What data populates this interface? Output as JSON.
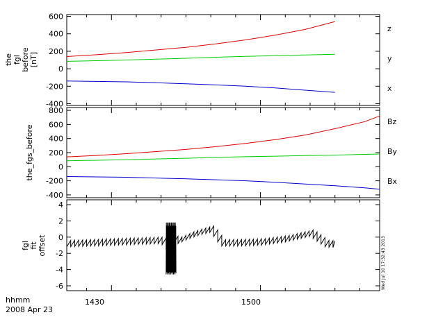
{
  "footer": {
    "xlabel_line1": "hhmm",
    "xlabel_line2": "2008 Apr 23",
    "x_ticks": [
      "1430",
      "1500"
    ],
    "stamp": "Wed Jul 10 17:32:43 2013"
  },
  "colors": {
    "red": "#e00000",
    "green": "#00cc00",
    "blue": "#0000cc",
    "black": "#000000"
  },
  "chart_data": [
    {
      "type": "line",
      "title": "",
      "ylabel": [
        "the",
        "fgl",
        "before",
        "[nT]"
      ],
      "x": {
        "unit": "hhmm",
        "range": [
          "14:21",
          "15:24"
        ],
        "ticks": [
          "14:30",
          "15:00"
        ]
      },
      "ylim": [
        -420,
        620
      ],
      "yticks": [
        600,
        400,
        200,
        0,
        -200,
        -400
      ],
      "grid": false,
      "legend_placement": "right",
      "series": [
        {
          "name": "z",
          "color": "#e00000",
          "x": [
            "14:21",
            "14:27",
            "14:33",
            "14:39",
            "14:45",
            "14:51",
            "14:57",
            "15:03",
            "15:09",
            "15:15"
          ],
          "y": [
            140,
            160,
            185,
            215,
            245,
            285,
            330,
            385,
            450,
            540
          ]
        },
        {
          "name": "y",
          "color": "#00cc00",
          "x": [
            "14:21",
            "14:27",
            "14:33",
            "14:39",
            "14:45",
            "14:51",
            "14:57",
            "15:03",
            "15:09",
            "15:15"
          ],
          "y": [
            85,
            92,
            100,
            110,
            120,
            132,
            142,
            150,
            158,
            165
          ]
        },
        {
          "name": "x",
          "color": "#0000cc",
          "x": [
            "14:21",
            "14:27",
            "14:33",
            "14:39",
            "14:45",
            "14:51",
            "14:57",
            "15:03",
            "15:09",
            "15:15"
          ],
          "y": [
            -140,
            -145,
            -150,
            -160,
            -172,
            -185,
            -200,
            -220,
            -245,
            -270
          ]
        }
      ]
    },
    {
      "type": "line",
      "title": "",
      "ylabel": [
        "the_fgs_before"
      ],
      "x": {
        "unit": "hhmm",
        "range": [
          "14:21",
          "15:24"
        ],
        "ticks": [
          "14:30",
          "15:00"
        ]
      },
      "ylim": [
        -440,
        840
      ],
      "yticks": [
        800,
        600,
        400,
        200,
        0,
        -200,
        -400
      ],
      "grid": false,
      "legend_placement": "right",
      "series": [
        {
          "name": "Bz",
          "color": "#e00000",
          "x": [
            "14:21",
            "14:27",
            "14:33",
            "14:39",
            "14:45",
            "14:51",
            "14:57",
            "15:03",
            "15:09",
            "15:15",
            "15:21",
            "15:24"
          ],
          "y": [
            140,
            160,
            185,
            215,
            245,
            285,
            330,
            385,
            450,
            540,
            640,
            720
          ]
        },
        {
          "name": "By",
          "color": "#00cc00",
          "x": [
            "14:21",
            "14:27",
            "14:33",
            "14:39",
            "14:45",
            "14:51",
            "14:57",
            "15:03",
            "15:09",
            "15:15",
            "15:21",
            "15:24"
          ],
          "y": [
            85,
            92,
            100,
            110,
            120,
            132,
            142,
            150,
            158,
            165,
            175,
            180
          ]
        },
        {
          "name": "Bx",
          "color": "#0000cc",
          "x": [
            "14:21",
            "14:27",
            "14:33",
            "14:39",
            "14:45",
            "14:51",
            "14:57",
            "15:03",
            "15:09",
            "15:15",
            "15:21",
            "15:24"
          ],
          "y": [
            -140,
            -145,
            -150,
            -160,
            -172,
            -185,
            -200,
            -220,
            -245,
            -270,
            -300,
            -320
          ]
        }
      ]
    },
    {
      "type": "line",
      "title": "",
      "ylabel": [
        "fgl",
        "fit",
        "offset"
      ],
      "x": {
        "unit": "hhmm",
        "range": [
          "14:21",
          "15:24"
        ],
        "ticks": [
          "14:30",
          "15:00"
        ]
      },
      "ylim": [
        -6.6,
        4.6
      ],
      "yticks": [
        4,
        2,
        0,
        -2,
        -4,
        -6
      ],
      "grid": false,
      "series": [
        {
          "name": "",
          "color": "#000000",
          "sawtooth": {
            "period_min": 0.8,
            "amplitude": 0.8
          },
          "x": [
            "14:21",
            "14:30",
            "14:40",
            "14:41",
            "14:42",
            "14:43",
            "14:46",
            "14:48",
            "14:50",
            "14:52",
            "14:55",
            "15:00",
            "15:05",
            "15:10",
            "15:13",
            "15:15"
          ],
          "y": [
            -0.8,
            -0.6,
            -0.4,
            -1.0,
            0.0,
            -0.5,
            0.3,
            0.7,
            1.0,
            -0.7,
            -0.7,
            -0.6,
            -0.2,
            0.5,
            -0.8,
            -0.9
          ]
        },
        {
          "name": "",
          "color": "#000000",
          "burst": {
            "x_from": "14:41",
            "x_to": "14:43",
            "ymin": -4.6,
            "ymax": 2.0
          }
        }
      ]
    }
  ]
}
